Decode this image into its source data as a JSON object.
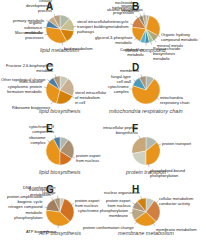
{
  "chart_data": [
    {
      "type": "pie",
      "title": "lipid metabolism",
      "annotations": [
        "A"
      ],
      "categories": [
        "cellular\ndevelopmental\nprocess",
        "primary metabolic",
        "organic\nsubstance\nmetabolic",
        "Macromolecular\nprocesses",
        "lipid metabolism",
        "sterol intracellular\ntransport building\npathways",
        null
      ],
      "values": [
        12,
        8,
        7,
        8,
        35,
        15,
        15
      ],
      "colors": [
        "#b0b8a8",
        "#b8a080",
        "#c8aa82",
        "#4a7fa5",
        "#e8941a",
        "#d4810a",
        "#c8c090"
      ]
    },
    {
      "type": "pie",
      "title": "sterol compound",
      "annotations": [
        "B"
      ],
      "categories": [
        "alcohol biosynthesis",
        "secondary\nmetabolic",
        "nucleoside\ntriphosphate\nprogression",
        "heterocycle\nmetabolism",
        "glycerol-3-phosphate\nmetabolic",
        "Carbohydrate\nmetabolic",
        "Polysaccharide\nbiosynthesis\nmetabolic",
        "mineral metals",
        "Organic hydroxy\ncompound metabolic",
        null
      ],
      "values": [
        4,
        4,
        5,
        14,
        20,
        6,
        5,
        5,
        8,
        29
      ],
      "colors": [
        "#b8b8b8",
        "#b8a888",
        "#908870",
        "#d08040",
        "#e8941a",
        "#5ab0c8",
        "#3890b0",
        "#a8c890",
        "#b0a878",
        "#e8941a"
      ]
    },
    {
      "type": "pie",
      "title": "lipid biosynthesis",
      "annotations": [
        "C"
      ],
      "categories": [
        "Fructose 2,6-bisphosphate\nmetabolic",
        "Other topological change",
        "multi-subunit\ncytoplasmic protein\nformation metabolic",
        "Ribosome biogenesis",
        "sterol intracellular\nof metabolism\nin cell",
        null
      ],
      "values": [
        10,
        8,
        8,
        30,
        22,
        22
      ],
      "colors": [
        "#c8c8b8",
        "#b0977a",
        "#4a7fa5",
        "#e8941a",
        "#d4810a",
        "#c8b090"
      ]
    },
    {
      "type": "pie",
      "title": "mitochondria respiratory chain",
      "annotations": [
        "D"
      ],
      "categories": [
        "membrane",
        "fungal-type\ncell wall",
        "cytochrome\ncomplex",
        "mitochondria\nrespiratory chain"
      ],
      "values": [
        10,
        8,
        12,
        70
      ],
      "colors": [
        "#b0b8b0",
        "#b0977a",
        "#4a9ab8",
        "#e8941a"
      ]
    },
    {
      "type": "pie",
      "title": "lipid biosynthesis",
      "annotations": [
        "E"
      ],
      "categories": [
        "cytochrome III\ncomponents",
        "ribosome\ncomplex",
        null,
        "protein export\nfrom nucleus",
        null
      ],
      "values": [
        10,
        8,
        42,
        16,
        24
      ],
      "colors": [
        "#b0b8b0",
        "#4a7fa5",
        "#e8941a",
        "#d07020",
        "#a89070"
      ]
    },
    {
      "type": "pie",
      "title": "protein transport",
      "annotations": [
        "F"
      ],
      "categories": [
        "intracellular peptide\nbiosynthesis",
        null,
        "phospholipid-bound\nphosphorylation",
        "protein transport"
      ],
      "values": [
        14,
        28,
        22,
        36
      ],
      "colors": [
        "#b0b8b0",
        "#c8a878",
        "#d0d0c0",
        "#e8941a"
      ]
    },
    {
      "type": "pie",
      "title": "ATP biosynthesis",
      "annotations": [
        "G"
      ],
      "categories": [
        "DNA conformation\nchange",
        "transcription\nmetabolism",
        "protein amplification\nbiogenic cycle\nnitrogen compound\nmetabolic\nphosphorylation",
        "ATP biosynthesis",
        "protein export\nfrom nucleus"
      ],
      "values": [
        5,
        7,
        16,
        40,
        32
      ],
      "colors": [
        "#c8c8b8",
        "#b0977a",
        "#a08060",
        "#e8941a",
        "#d07020"
      ]
    },
    {
      "type": "pie",
      "title": "membrane metabolism",
      "annotations": [
        "H"
      ],
      "categories": [
        "nuclear organization",
        "protein export\nfrom nucleus",
        "cytochrome phosphorylation\nmembrane",
        "protein conformation change",
        "membrane metabolism",
        "cellular metabolism\nconductor activity"
      ],
      "values": [
        10,
        11,
        10,
        14,
        28,
        27
      ],
      "colors": [
        "#c0c8c0",
        "#d4810a",
        "#b0977a",
        "#b8a888",
        "#e8941a",
        "#d08040"
      ]
    }
  ]
}
